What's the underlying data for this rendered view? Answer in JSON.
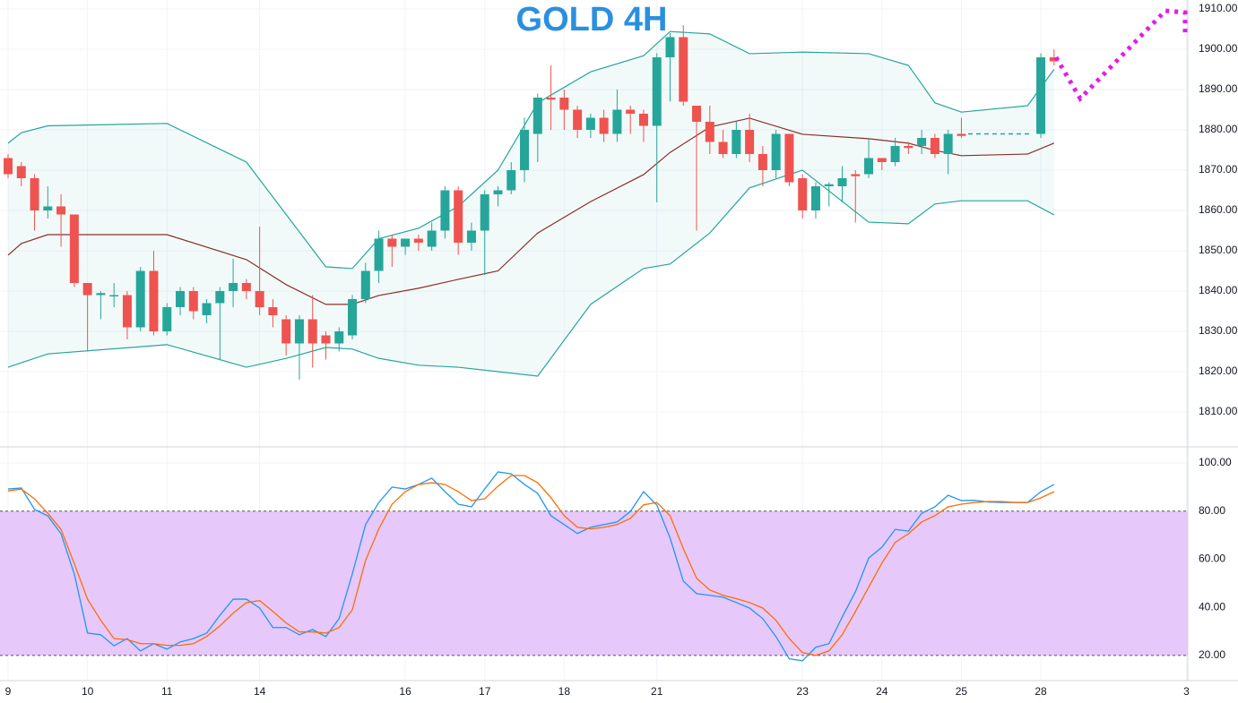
{
  "chart_data": [
    {
      "type": "candlestick",
      "title": "GOLD 4H",
      "up_color": "#26a69a",
      "down_color": "#ef5350",
      "xlim": [
        -0.61,
        89.1
      ],
      "xticks": [
        {
          "value": 0,
          "label": "9"
        },
        {
          "value": 6,
          "label": "10"
        },
        {
          "value": 12,
          "label": "11"
        },
        {
          "value": 19,
          "label": "14"
        },
        {
          "value": 30,
          "label": "16"
        },
        {
          "value": 36,
          "label": "17"
        },
        {
          "value": 42,
          "label": "18"
        },
        {
          "value": 49,
          "label": "21"
        },
        {
          "value": 60,
          "label": "23"
        },
        {
          "value": 66,
          "label": "24"
        },
        {
          "value": 72,
          "label": "25"
        },
        {
          "value": 78,
          "label": "28"
        },
        {
          "value": 89,
          "label": "3"
        }
      ],
      "ylim": [
        1807.78,
        1910
      ],
      "yticks": [
        {
          "value": 1810,
          "label": "1810.00"
        },
        {
          "value": 1820,
          "label": "1820.00"
        },
        {
          "value": 1830,
          "label": "1830.00"
        },
        {
          "value": 1840,
          "label": "1840.00"
        },
        {
          "value": 1850,
          "label": "1850.00"
        },
        {
          "value": 1860,
          "label": "1860.00"
        },
        {
          "value": 1870,
          "label": "1870.00"
        },
        {
          "value": 1880,
          "label": "1880.00"
        },
        {
          "value": 1890,
          "label": "1890.00"
        },
        {
          "value": 1900,
          "label": "1900.00"
        },
        {
          "value": 1910,
          "label": "1910.00"
        }
      ],
      "grid": true,
      "x": [
        0,
        1,
        2,
        3,
        4,
        5,
        6,
        7,
        8,
        9,
        10,
        11,
        12,
        13,
        14,
        15,
        16,
        17,
        18,
        19,
        20,
        21,
        22,
        23,
        24,
        25,
        26,
        27,
        28,
        29,
        30,
        31,
        32,
        33,
        34,
        35,
        36,
        37,
        38,
        39,
        40,
        41,
        42,
        43,
        44,
        45,
        46,
        47,
        48,
        49,
        50,
        51,
        52,
        53,
        54,
        55,
        56,
        57,
        58,
        59,
        60,
        61,
        62,
        63,
        64,
        65,
        66,
        67,
        68,
        69,
        70,
        71,
        72,
        78,
        79
      ],
      "ohlc": [
        [
          1873,
          1874,
          1868,
          1869
        ],
        [
          1871,
          1872,
          1866,
          1868
        ],
        [
          1868,
          1869,
          1855,
          1860
        ],
        [
          1860,
          1866,
          1858,
          1861
        ],
        [
          1861,
          1864,
          1851,
          1859
        ],
        [
          1859,
          1859,
          1841,
          1842
        ],
        [
          1842,
          1842,
          1825,
          1839
        ],
        [
          1839,
          1840,
          1833,
          1839.5
        ],
        [
          1839,
          1842,
          1836,
          1839
        ],
        [
          1839,
          1840,
          1828,
          1831
        ],
        [
          1831,
          1846,
          1830,
          1845
        ],
        [
          1845,
          1850,
          1829,
          1830
        ],
        [
          1830,
          1837,
          1829,
          1836
        ],
        [
          1836,
          1841,
          1834,
          1840
        ],
        [
          1840,
          1841,
          1833,
          1835
        ],
        [
          1834,
          1838,
          1832,
          1837
        ],
        [
          1837,
          1841,
          1823,
          1840
        ],
        [
          1840,
          1848,
          1836,
          1842
        ],
        [
          1842,
          1843,
          1838,
          1840
        ],
        [
          1840,
          1856,
          1834,
          1836
        ],
        [
          1836,
          1838,
          1831,
          1834
        ],
        [
          1833,
          1834,
          1824,
          1827
        ],
        [
          1827,
          1834,
          1818,
          1833
        ],
        [
          1833,
          1839,
          1821,
          1827
        ],
        [
          1829,
          1830,
          1823,
          1827
        ],
        [
          1827,
          1831,
          1825,
          1830
        ],
        [
          1829,
          1839,
          1828,
          1838
        ],
        [
          1838,
          1847,
          1837,
          1845
        ],
        [
          1845,
          1855,
          1842,
          1853
        ],
        [
          1853,
          1854,
          1846,
          1851
        ],
        [
          1851,
          1853,
          1849,
          1853
        ],
        [
          1853,
          1854,
          1850,
          1852
        ],
        [
          1851,
          1857,
          1850,
          1855
        ],
        [
          1855,
          1866,
          1853,
          1865
        ],
        [
          1865,
          1866,
          1849,
          1852
        ],
        [
          1852,
          1857,
          1850,
          1855
        ],
        [
          1855,
          1865,
          1844,
          1864
        ],
        [
          1864,
          1866,
          1861,
          1865
        ],
        [
          1865,
          1872,
          1864,
          1870
        ],
        [
          1870,
          1883,
          1867,
          1880
        ],
        [
          1879,
          1889,
          1872,
          1888
        ],
        [
          1888,
          1896,
          1880,
          1887.5
        ],
        [
          1888,
          1890,
          1880,
          1885
        ],
        [
          1885,
          1886,
          1878,
          1880
        ],
        [
          1880,
          1884,
          1878,
          1883
        ],
        [
          1883,
          1885,
          1877,
          1879
        ],
        [
          1879,
          1890,
          1877,
          1885
        ],
        [
          1885,
          1886,
          1879,
          1884
        ],
        [
          1884,
          1885,
          1877,
          1881
        ],
        [
          1881,
          1899,
          1862,
          1898
        ],
        [
          1898,
          1904,
          1887,
          1903
        ],
        [
          1903,
          1906,
          1886,
          1887
        ],
        [
          1886,
          1886,
          1855,
          1882
        ],
        [
          1882,
          1886,
          1874,
          1877
        ],
        [
          1877,
          1880,
          1873,
          1874
        ],
        [
          1874,
          1882,
          1873,
          1880
        ],
        [
          1880,
          1884,
          1872,
          1874
        ],
        [
          1874,
          1876,
          1866,
          1870
        ],
        [
          1870,
          1880,
          1868,
          1879
        ],
        [
          1879,
          1879,
          1866,
          1867
        ],
        [
          1868,
          1869,
          1858,
          1860
        ],
        [
          1860,
          1867,
          1858,
          1866
        ],
        [
          1866,
          1867,
          1861,
          1866.5
        ],
        [
          1866,
          1871,
          1862,
          1868
        ],
        [
          1869,
          1870,
          1857,
          1868.5
        ],
        [
          1869,
          1878,
          1868,
          1873
        ],
        [
          1873,
          1873,
          1870,
          1872
        ],
        [
          1872,
          1878,
          1871,
          1876
        ],
        [
          1876,
          1877,
          1874,
          1875.5
        ],
        [
          1876,
          1880,
          1874,
          1878
        ],
        [
          1878,
          1879,
          1873,
          1874
        ],
        [
          1874,
          1880,
          1869,
          1879
        ],
        [
          1879,
          1883,
          1878,
          1878.5
        ],
        [
          1879,
          1899,
          1878,
          1898
        ],
        [
          1898,
          1900,
          1896,
          1897
        ]
      ],
      "band_fill": "#26a69a",
      "band_x": [
        0,
        1,
        3,
        12,
        18,
        21,
        24,
        26,
        28,
        31,
        34,
        37,
        40,
        44,
        48,
        50,
        53,
        56,
        60,
        65,
        68,
        70,
        72,
        77,
        79
      ],
      "bands": [
        {
          "color": "#26a69a",
          "values": [
            1876.7,
            1879.3,
            1881,
            1881.6,
            1872,
            1859,
            1846,
            1845.6,
            1853,
            1855.6,
            1861,
            1870,
            1886.7,
            1894.4,
            1898.4,
            1904.4,
            1903.8,
            1898.9,
            1899.3,
            1898.9,
            1896,
            1886.7,
            1884.4,
            1886,
            1895
          ]
        },
        {
          "color": "#8b2e2e",
          "values": [
            1848.9,
            1851.8,
            1854,
            1854,
            1847.8,
            1841.6,
            1836.7,
            1836.7,
            1838.9,
            1840.7,
            1842.9,
            1845,
            1854.4,
            1862.2,
            1868.9,
            1874.4,
            1880.7,
            1882.9,
            1878.9,
            1877.8,
            1876.7,
            1874.9,
            1873.6,
            1874,
            1876.7
          ]
        },
        {
          "color": "#26a69a",
          "values": [
            1821.1,
            1822.2,
            1824.4,
            1826.7,
            1821.1,
            1823.3,
            1826,
            1825.6,
            1823.3,
            1821.6,
            1821.1,
            1820,
            1818.9,
            1836.7,
            1845.6,
            1846.7,
            1854.4,
            1865.6,
            1870,
            1857.1,
            1856.7,
            1861.6,
            1862.4,
            1862.4,
            1858.9
          ]
        }
      ]
    },
    {
      "type": "line",
      "ylim": [
        7.3,
        105.6
      ],
      "yticks": [
        {
          "value": 20,
          "label": "20.00"
        },
        {
          "value": 40,
          "label": "40.00"
        },
        {
          "value": 60,
          "label": "60.00"
        },
        {
          "value": 80,
          "label": "80.00"
        },
        {
          "value": 100,
          "label": "100.00"
        }
      ],
      "levels": [
        20,
        80
      ],
      "level_color": "#e6c8fb",
      "series": [
        {
          "color": "#2196f3",
          "values": [
            89.2,
            89.6,
            80.7,
            78,
            70.6,
            53.9,
            29.3,
            28.6,
            24,
            27,
            21.9,
            24.9,
            22.6,
            25.6,
            27,
            29.3,
            36.7,
            43.4,
            43.4,
            39.7,
            31.6,
            31.6,
            28.6,
            30.8,
            27.8,
            35.3,
            53.9,
            74.4,
            83.6,
            90,
            89.2,
            91.1,
            93.7,
            88.1,
            82.9,
            81.8,
            89.2,
            96.3,
            95.5,
            91.1,
            87.4,
            78.1,
            74.4,
            70.7,
            73.3,
            74.4,
            75.5,
            79.9,
            88.1,
            82.5,
            68.8,
            50.9,
            45.7,
            45,
            44.2,
            42,
            39.7,
            35.3,
            27.8,
            18.6,
            17.8,
            23.4,
            24.9,
            36,
            46.5,
            60.5,
            65,
            72.4,
            71.7,
            79.1,
            81.8,
            86.6,
            84.4,
            84.5,
            83.8,
            83.6,
            83.6,
            83.6,
            88.1,
            91.1
          ]
        },
        {
          "color": "#ff6d00",
          "values": [
            88.4,
            89.2,
            85.1,
            79.1,
            72.4,
            58.2,
            43.4,
            34.6,
            27,
            26.6,
            24.9,
            24.9,
            24.2,
            24.2,
            24.9,
            27.9,
            32.3,
            37.6,
            42,
            42.8,
            38.3,
            33.5,
            29.8,
            29.8,
            29.3,
            31.6,
            39,
            59.5,
            72.6,
            82.9,
            88.1,
            91.1,
            91.8,
            91.1,
            88.1,
            84.4,
            85.1,
            90.4,
            94.8,
            94.8,
            91.8,
            85.6,
            78.1,
            73.3,
            72.6,
            73.3,
            74.4,
            77,
            82.6,
            83.6,
            78.1,
            64.4,
            52.1,
            47.2,
            45,
            43.6,
            42,
            39.7,
            34.6,
            27,
            21.2,
            20,
            21.9,
            28.6,
            38.3,
            48.4,
            58.4,
            67,
            70.6,
            75.5,
            78.1,
            81.8,
            82.9,
            83.6,
            84,
            84,
            83.6,
            83.6,
            85.5,
            88.1
          ]
        }
      ]
    }
  ]
}
